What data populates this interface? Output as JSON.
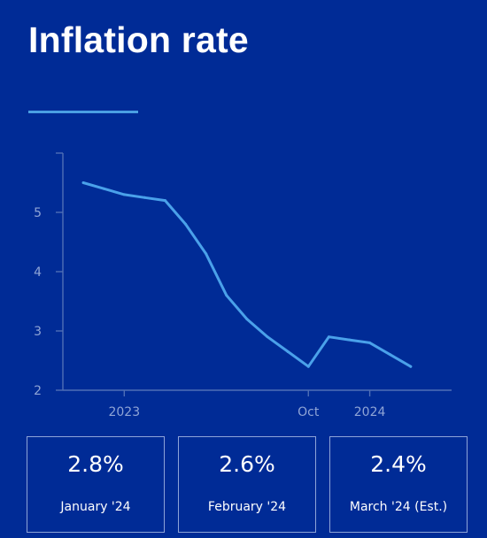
{
  "header": {
    "title": "Inflation rate"
  },
  "chart_data": {
    "type": "line",
    "title": "Inflation rate",
    "xlabel": "",
    "ylabel": "",
    "ylim": [
      2,
      6
    ],
    "yticks": [
      2,
      3,
      4,
      5
    ],
    "xlim": [
      "2022-10",
      "2024-05"
    ],
    "xticks": [
      {
        "label": "2023",
        "x": "2023-01"
      },
      {
        "label": "Oct",
        "x": "2023-10"
      },
      {
        "label": "2024",
        "x": "2024-01"
      }
    ],
    "grid": false,
    "series": [
      {
        "color": "#4aa1ea",
        "x": [
          "2022-11",
          "2022-12",
          "2023-01",
          "2023-02",
          "2023-03",
          "2023-04",
          "2023-05",
          "2023-06",
          "2023-07",
          "2023-08",
          "2023-09",
          "2023-10",
          "2023-11",
          "2023-12",
          "2024-01",
          "2024-02",
          "2024-03"
        ],
        "values": [
          5.5,
          5.4,
          5.3,
          5.25,
          5.2,
          4.8,
          4.3,
          3.6,
          3.2,
          2.9,
          2.65,
          2.4,
          2.9,
          2.85,
          2.8,
          2.6,
          2.4
        ]
      }
    ]
  },
  "stats": [
    {
      "value": "2.8%",
      "label": "January '24"
    },
    {
      "value": "2.6%",
      "label": "February '24"
    },
    {
      "value": "2.4%",
      "label": "March '24 (Est.)"
    }
  ],
  "colors": {
    "background": "#002b96",
    "accent": "#4a9fe3",
    "line": "#4aa1ea"
  }
}
